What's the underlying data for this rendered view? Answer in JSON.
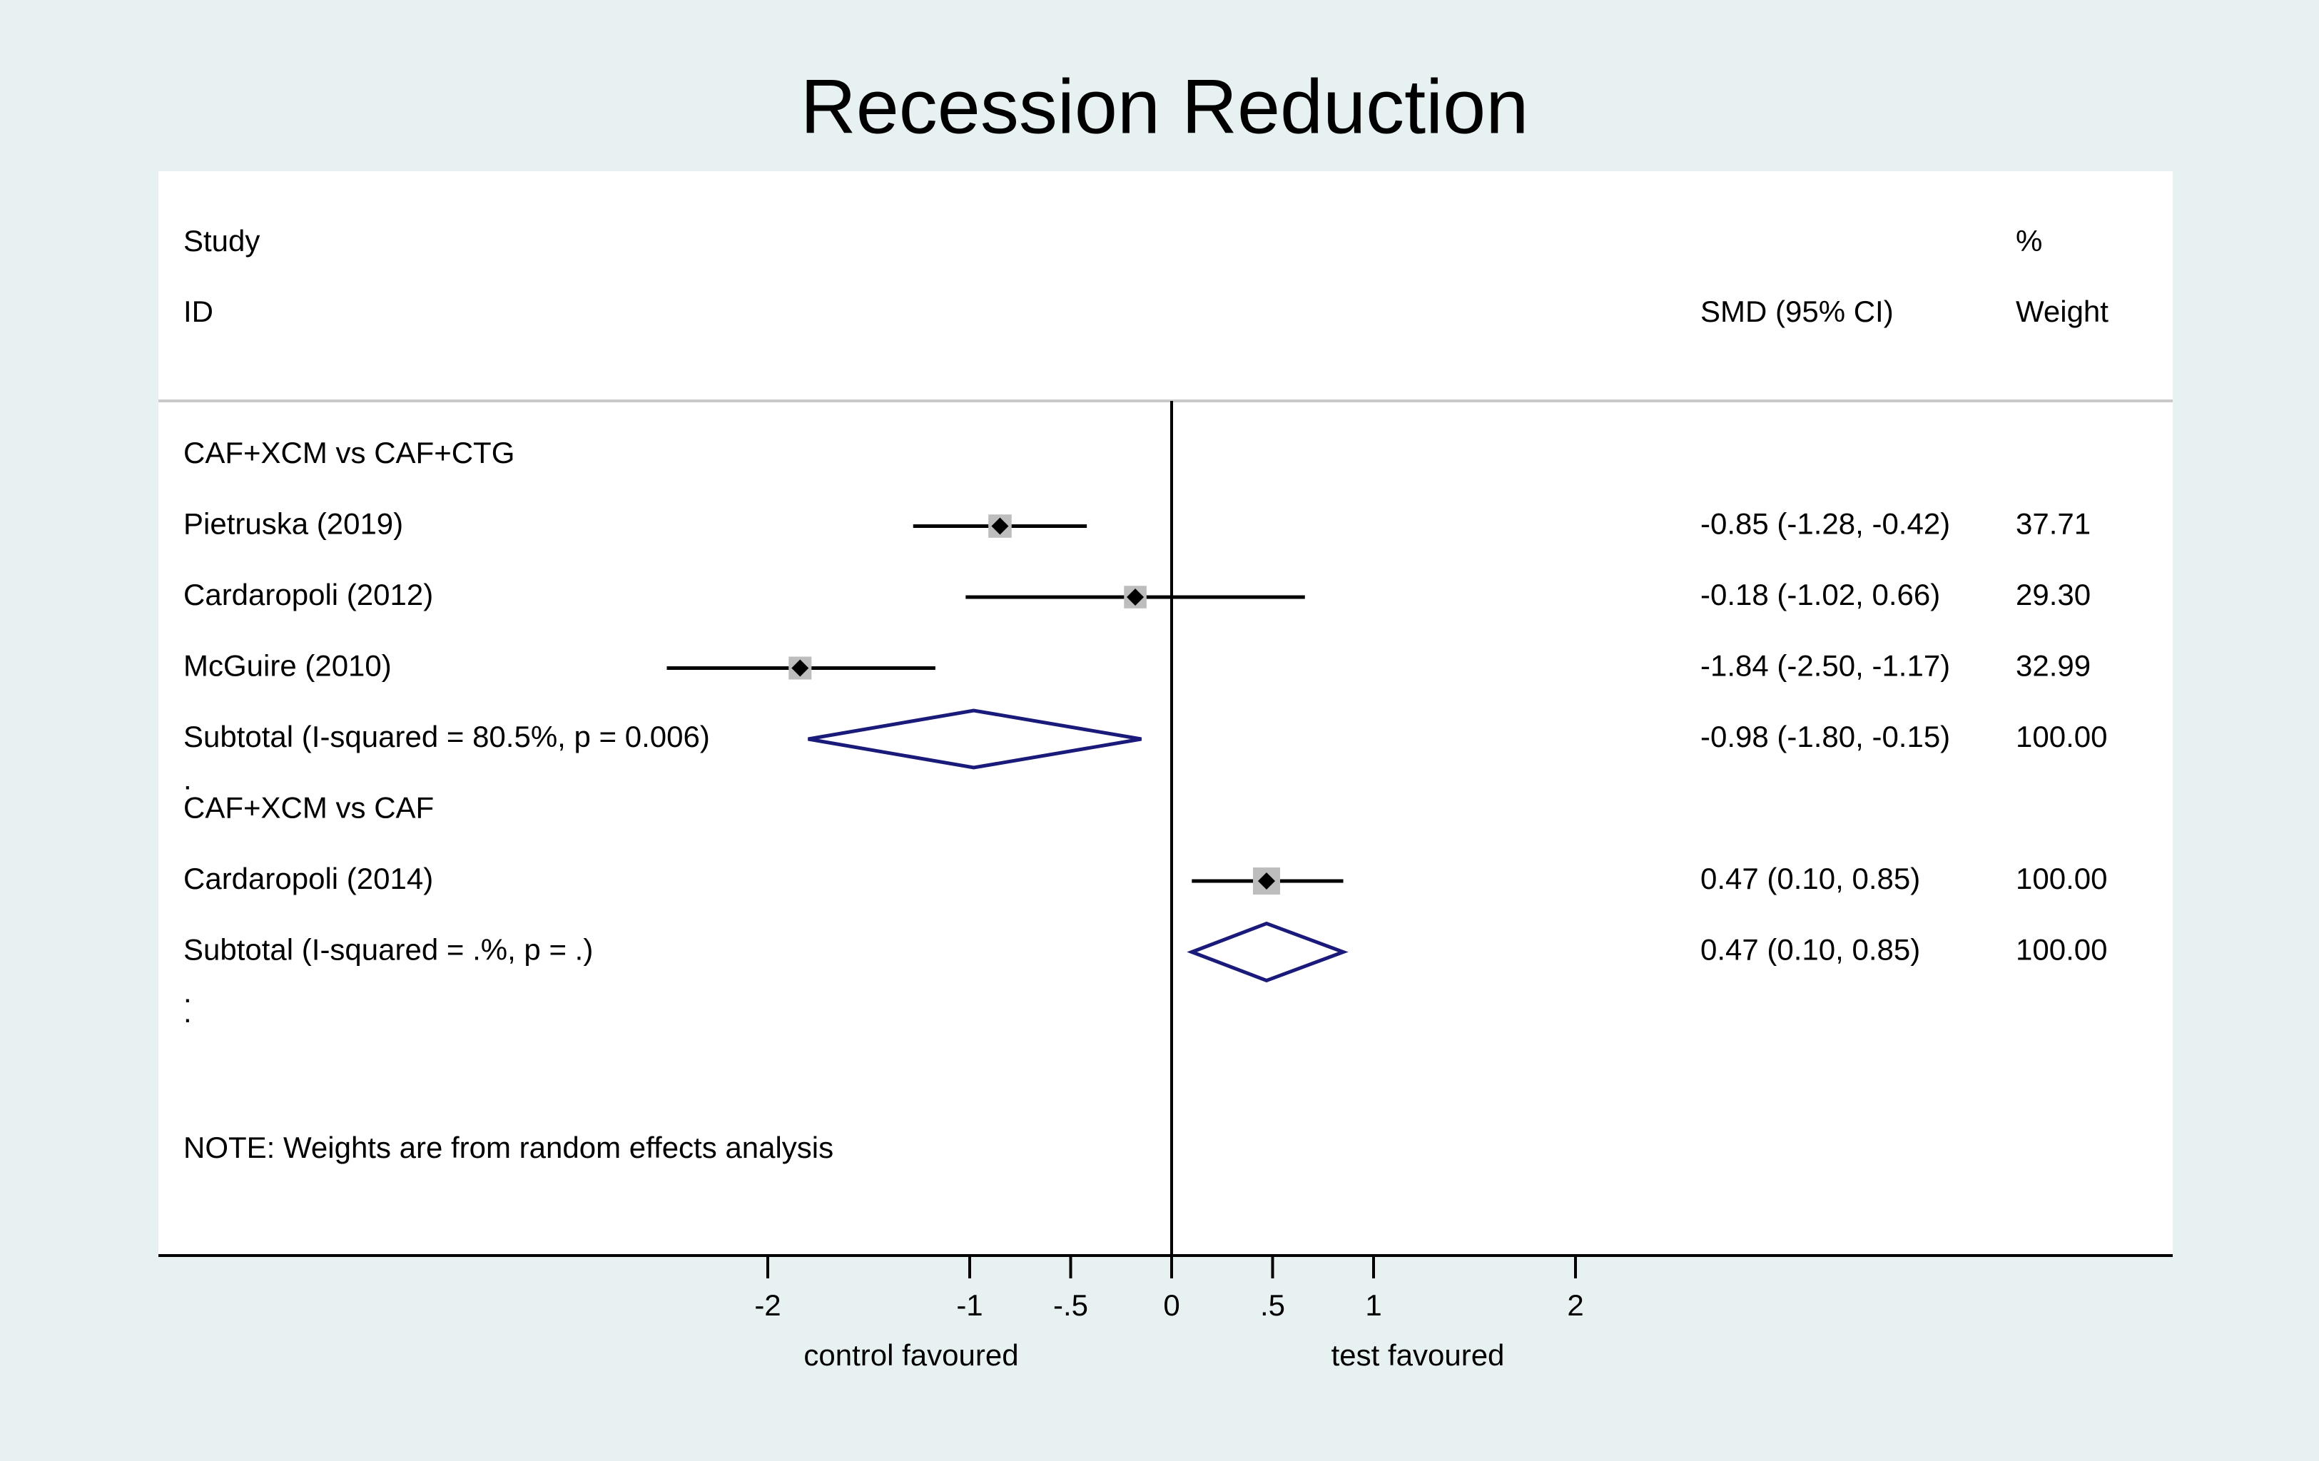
{
  "chart_data": {
    "type": "forest",
    "title": "Recession Reduction",
    "header": {
      "study_line1": "Study",
      "study_line2": "ID",
      "effect_label": "SMD (95% CI)",
      "weight_line1": "%",
      "weight_line2": "Weight"
    },
    "groups": [
      {
        "name": "CAF+XCM vs CAF+CTG",
        "studies": [
          {
            "label": "Pietruska (2019)",
            "est": -0.85,
            "lo": -1.28,
            "hi": -0.42,
            "ci_text": "-0.85 (-1.28, -0.42)",
            "weight_text": "37.71",
            "weight": 37.71
          },
          {
            "label": "Cardaropoli (2012)",
            "est": -0.18,
            "lo": -1.02,
            "hi": 0.66,
            "ci_text": "-0.18 (-1.02, 0.66)",
            "weight_text": "29.30",
            "weight": 29.3
          },
          {
            "label": "McGuire (2010)",
            "est": -1.84,
            "lo": -2.5,
            "hi": -1.17,
            "ci_text": "-1.84 (-2.50, -1.17)",
            "weight_text": "32.99",
            "weight": 32.99
          }
        ],
        "subtotal": {
          "label": "Subtotal  (I-squared = 80.5%, p = 0.006)",
          "est": -0.98,
          "lo": -1.8,
          "hi": -0.15,
          "ci_text": "-0.98 (-1.80, -0.15)",
          "weight_text": "100.00"
        }
      },
      {
        "name": "CAF+XCM vs CAF",
        "studies": [
          {
            "label": "Cardaropoli (2014)",
            "est": 0.47,
            "lo": 0.1,
            "hi": 0.85,
            "ci_text": "0.47 (0.10, 0.85)",
            "weight_text": "100.00",
            "weight": 100.0
          }
        ],
        "subtotal": {
          "label": "Subtotal  (I-squared = .%, p = .)",
          "est": 0.47,
          "lo": 0.1,
          "hi": 0.85,
          "ci_text": "0.47 (0.10, 0.85)",
          "weight_text": "100.00"
        }
      }
    ],
    "separator_dot": ".",
    "note": "NOTE: Weights are from random effects analysis",
    "x_ticks": [
      {
        "value": -2,
        "label": "-2"
      },
      {
        "value": -1,
        "label": "-1"
      },
      {
        "value": -0.5,
        "label": "-.5"
      },
      {
        "value": 0,
        "label": "0"
      },
      {
        "value": 0.5,
        "label": ".5"
      },
      {
        "value": 1,
        "label": "1"
      },
      {
        "value": 2,
        "label": "2"
      }
    ],
    "xlim": [
      -4.95,
      4.95
    ],
    "left_caption": "control favoured",
    "right_caption": "test favoured",
    "colors": {
      "outer_bg": "#e8f1f2",
      "panel_bg": "#ffffff",
      "title": "#1e2a5a",
      "diamond": "#1a1a7a",
      "box": "#bdbdbd",
      "line": "#000000",
      "divider": "#c9c9c9"
    }
  }
}
